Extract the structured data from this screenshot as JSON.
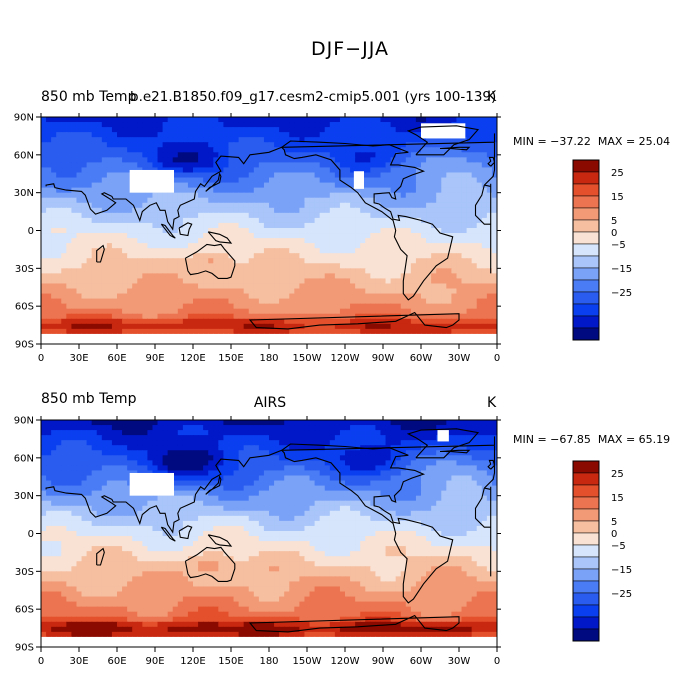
{
  "title": "DJF−JJA",
  "chart_data": [
    {
      "type": "heatmap",
      "title_left": "850 mb Temp",
      "title_center": "b.e21.B1850.f09_g17.cesm2-cmip5.001 (yrs 100-139)",
      "title_right": "K",
      "min_label": "MIN = −37.22",
      "max_label": "MAX =  25.04",
      "x_ticks": [
        "0",
        "30E",
        "60E",
        "90E",
        "120E",
        "150E",
        "180",
        "150W",
        "120W",
        "90W",
        "60W",
        "30W",
        "0"
      ],
      "y_ticks": [
        "90N",
        "60N",
        "30N",
        "0",
        "30S",
        "60S",
        "90S"
      ],
      "xlim": [
        0,
        360
      ],
      "ylim": [
        -90,
        90
      ],
      "contour_levels": [
        -30,
        -25,
        -20,
        -15,
        -10,
        -5,
        0,
        5,
        10,
        15,
        20,
        25,
        30
      ],
      "colorbar_labels": [
        "25",
        "15",
        "5",
        "0",
        "−5",
        "−15",
        "−25"
      ],
      "colorbar_label_values": [
        25,
        15,
        5,
        0,
        -5,
        -15,
        -25
      ]
    },
    {
      "type": "heatmap",
      "title_left": "850 mb Temp",
      "title_center": "AIRS",
      "title_right": "K",
      "min_label": "MIN = −67.85",
      "max_label": "MAX =  65.19",
      "x_ticks": [
        "0",
        "30E",
        "60E",
        "90E",
        "120E",
        "150E",
        "180",
        "150W",
        "120W",
        "90W",
        "60W",
        "30W",
        "0"
      ],
      "y_ticks": [
        "90N",
        "60N",
        "30N",
        "0",
        "30S",
        "60S",
        "90S"
      ],
      "xlim": [
        0,
        360
      ],
      "ylim": [
        -90,
        90
      ],
      "contour_levels": [
        -30,
        -25,
        -20,
        -15,
        -10,
        -5,
        0,
        5,
        10,
        15,
        20,
        25,
        30
      ],
      "colorbar_labels": [
        "25",
        "15",
        "5",
        "0",
        "−5",
        "−15",
        "−25"
      ],
      "colorbar_label_values": [
        25,
        15,
        5,
        0,
        -5,
        -15,
        -25
      ]
    }
  ],
  "colors": {
    "palette": [
      "#000a80",
      "#0018c8",
      "#0a3ff0",
      "#2a5cf0",
      "#4a7cf5",
      "#7aa2f7",
      "#a9c5f9",
      "#d6e5fb",
      "#f9e2d4",
      "#f6bfa0",
      "#f29a76",
      "#ec7450",
      "#e4502c",
      "#c82810",
      "#8a0a00"
    ],
    "missing": "#ffffff",
    "coast": "#000000"
  }
}
